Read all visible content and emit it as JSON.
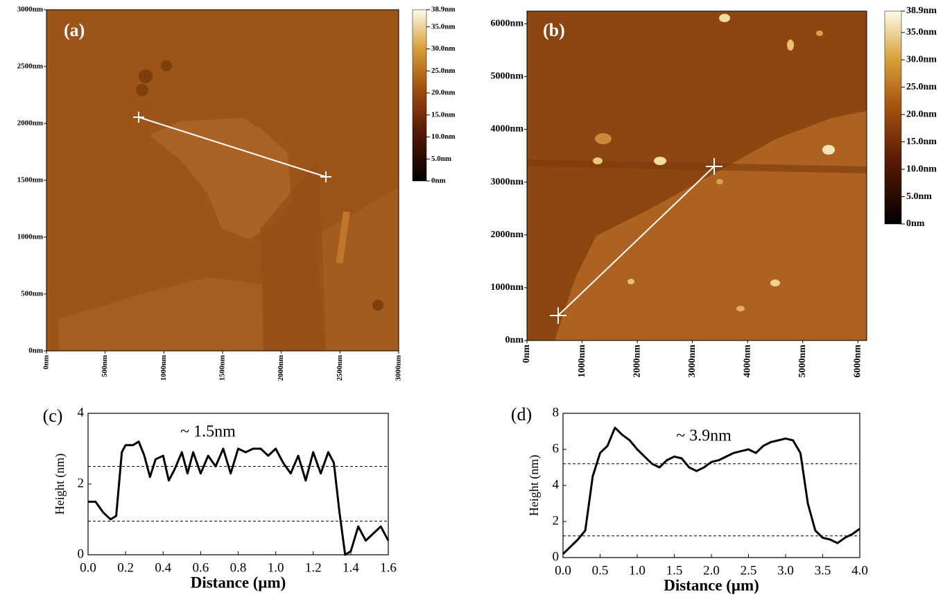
{
  "chart_data": [
    {
      "type": "image",
      "title": "(a)",
      "xlim": [
        0,
        3000
      ],
      "ylim": [
        0,
        3000
      ],
      "xticks": [
        {
          "value": 0,
          "label": "0nm"
        },
        {
          "value": 500,
          "label": "500nm"
        },
        {
          "value": 1000,
          "label": "1000nm"
        },
        {
          "value": 1500,
          "label": "1500nm"
        },
        {
          "value": 2000,
          "label": "2000nm"
        },
        {
          "value": 2500,
          "label": "2500nm"
        },
        {
          "value": 3000,
          "label": "3000nm"
        }
      ],
      "yticks": [
        {
          "value": 0,
          "label": "0nm"
        },
        {
          "value": 500,
          "label": "500nm"
        },
        {
          "value": 1000,
          "label": "1000nm"
        },
        {
          "value": 1500,
          "label": "1500nm"
        },
        {
          "value": 2000,
          "label": "2000nm"
        },
        {
          "value": 2500,
          "label": "2500nm"
        },
        {
          "value": 3000,
          "label": "3000nm"
        }
      ],
      "clim": [
        0,
        38.9
      ],
      "cticks": [
        {
          "value": 38.9,
          "label": "38.9nm"
        },
        {
          "value": 35,
          "label": "35.0nm"
        },
        {
          "value": 30,
          "label": "30.0nm"
        },
        {
          "value": 25,
          "label": "25.0nm"
        },
        {
          "value": 20,
          "label": "20.0nm"
        },
        {
          "value": 15,
          "label": "15.0nm"
        },
        {
          "value": 10,
          "label": "10.0nm"
        },
        {
          "value": 5,
          "label": "5.0nm"
        },
        {
          "value": 0,
          "label": "0nm"
        }
      ]
    },
    {
      "type": "image",
      "title": "(b)",
      "xlim": [
        0,
        6160
      ],
      "ylim": [
        0,
        6240
      ],
      "xticks": [
        {
          "value": 0,
          "label": "0nm"
        },
        {
          "value": 1000,
          "label": "1000nm"
        },
        {
          "value": 2000,
          "label": "2000nm"
        },
        {
          "value": 3000,
          "label": "3000nm"
        },
        {
          "value": 4000,
          "label": "4000nm"
        },
        {
          "value": 5000,
          "label": "5000nm"
        },
        {
          "value": 6000,
          "label": "6000nm"
        }
      ],
      "yticks": [
        {
          "value": 0,
          "label": "0nm"
        },
        {
          "value": 1000,
          "label": "1000nm"
        },
        {
          "value": 2000,
          "label": "2000nm"
        },
        {
          "value": 3000,
          "label": "3000nm"
        },
        {
          "value": 4000,
          "label": "4000nm"
        },
        {
          "value": 5000,
          "label": "5000nm"
        },
        {
          "value": 6000,
          "label": "6000nm"
        }
      ],
      "clim": [
        0,
        38.9
      ],
      "cticks": [
        {
          "value": 38.9,
          "label": "38.9nm"
        },
        {
          "value": 35,
          "label": "35.0nm"
        },
        {
          "value": 30,
          "label": "30.0nm"
        },
        {
          "value": 25,
          "label": "25.0nm"
        },
        {
          "value": 20,
          "label": "20.0nm"
        },
        {
          "value": 15,
          "label": "15.0nm"
        },
        {
          "value": 10,
          "label": "10.0nm"
        },
        {
          "value": 5,
          "label": "5.0nm"
        },
        {
          "value": 0,
          "label": "0nm"
        }
      ]
    },
    {
      "type": "line",
      "title": "(c)",
      "annotation": "~ 1.5nm",
      "x_label": "Distance (μm)",
      "y_label": "Height (nm)",
      "xlim": [
        0,
        1.6
      ],
      "ylim": [
        0,
        4
      ],
      "xticks": [
        {
          "value": 0,
          "label": "0.0"
        },
        0.2,
        0.4,
        0.6,
        0.8,
        {
          "value": 1,
          "label": "1.0"
        },
        1.2,
        1.4,
        1.6
      ],
      "yticks": [
        0,
        2,
        4
      ],
      "reference_lines": [
        2.5,
        0.95
      ],
      "color": "#000000",
      "x": [
        0,
        0.04,
        0.08,
        0.12,
        0.15,
        0.18,
        0.2,
        0.24,
        0.27,
        0.3,
        0.33,
        0.36,
        0.4,
        0.43,
        0.46,
        0.5,
        0.53,
        0.56,
        0.6,
        0.64,
        0.68,
        0.72,
        0.76,
        0.8,
        0.84,
        0.88,
        0.92,
        0.96,
        1.0,
        1.04,
        1.08,
        1.12,
        1.16,
        1.2,
        1.24,
        1.28,
        1.31,
        1.34,
        1.37,
        1.4,
        1.44,
        1.48,
        1.52,
        1.56,
        1.6
      ],
      "values": [
        1.5,
        1.5,
        1.2,
        1.0,
        1.1,
        2.9,
        3.1,
        3.1,
        3.2,
        2.8,
        2.2,
        2.7,
        2.8,
        2.1,
        2.4,
        2.9,
        2.3,
        2.9,
        2.3,
        2.8,
        2.5,
        3.0,
        2.3,
        3.0,
        2.9,
        3.0,
        3.0,
        2.8,
        3.0,
        2.6,
        2.3,
        2.8,
        2.1,
        2.9,
        2.3,
        2.9,
        2.6,
        1.2,
        0.0,
        0.1,
        0.8,
        0.4,
        0.6,
        0.8,
        0.4
      ]
    },
    {
      "type": "line",
      "title": "(d)",
      "annotation": "~ 3.9nm",
      "x_label": "Distance (μm)",
      "y_label": "Height (nm)",
      "xlim": [
        0,
        4
      ],
      "ylim": [
        0,
        8
      ],
      "xticks": [
        {
          "value": 0,
          "label": "0.0"
        },
        0.5,
        {
          "value": 1,
          "label": "1.0"
        },
        1.5,
        {
          "value": 2,
          "label": "2.0"
        },
        2.5,
        {
          "value": 3,
          "label": "3.0"
        },
        3.5,
        {
          "value": 4,
          "label": "4.0"
        }
      ],
      "yticks": [
        0,
        2,
        4,
        6,
        8
      ],
      "reference_lines": [
        5.2,
        1.2
      ],
      "color": "#000000",
      "x": [
        0,
        0.1,
        0.2,
        0.3,
        0.4,
        0.5,
        0.6,
        0.7,
        0.8,
        0.9,
        1.0,
        1.1,
        1.2,
        1.3,
        1.4,
        1.5,
        1.6,
        1.7,
        1.8,
        1.9,
        2.0,
        2.1,
        2.2,
        2.3,
        2.4,
        2.5,
        2.6,
        2.7,
        2.8,
        2.9,
        3.0,
        3.1,
        3.2,
        3.3,
        3.4,
        3.5,
        3.6,
        3.7,
        3.8,
        3.9,
        4.0
      ],
      "values": [
        0.2,
        0.6,
        1.0,
        1.5,
        4.5,
        5.8,
        6.2,
        7.2,
        6.8,
        6.5,
        6.0,
        5.6,
        5.2,
        5.0,
        5.4,
        5.6,
        5.5,
        5.0,
        4.8,
        5.0,
        5.3,
        5.4,
        5.6,
        5.8,
        5.9,
        6.0,
        5.8,
        6.2,
        6.4,
        6.5,
        6.6,
        6.5,
        5.8,
        3.0,
        1.5,
        1.1,
        1.0,
        0.8,
        1.1,
        1.3,
        1.6
      ]
    }
  ]
}
